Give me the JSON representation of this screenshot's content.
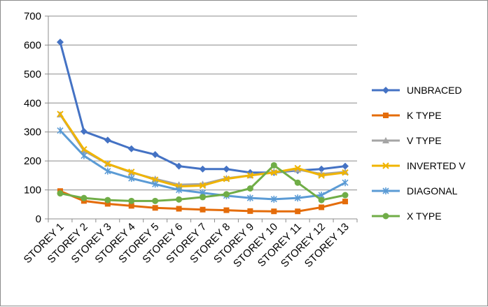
{
  "chart_data": {
    "type": "line",
    "title": "",
    "xlabel": "",
    "ylabel": "",
    "categories": [
      "STOREY 1",
      "STOREY 2",
      "STOREY 3",
      "STOREY 4",
      "STOREY 5",
      "STOREY 6",
      "STOREY 7",
      "STOREY 8",
      "STOREY 9",
      "STOREY 10",
      "STOREY 11",
      "STOREY 12",
      "STOREY 13"
    ],
    "ylim": [
      0,
      700
    ],
    "yticks": [
      0,
      100,
      200,
      300,
      400,
      500,
      600,
      700
    ],
    "grid": "horizontal",
    "legend_position": "right",
    "series": [
      {
        "name": "UNBRACED",
        "color": "#4472C4",
        "marker": "diamond",
        "values": [
          610,
          302,
          272,
          242,
          222,
          182,
          172,
          172,
          160,
          160,
          167,
          172,
          182
        ]
      },
      {
        "name": "K TYPE",
        "color": "#E46C0A",
        "marker": "square",
        "values": [
          96,
          62,
          52,
          45,
          38,
          35,
          32,
          30,
          27,
          26,
          26,
          40,
          60
        ]
      },
      {
        "name": "V TYPE",
        "color": "#A5A5A5",
        "marker": "triangle",
        "values": [
          360,
          235,
          190,
          160,
          138,
          118,
          120,
          140,
          150,
          162,
          170,
          155,
          162
        ]
      },
      {
        "name": "INVERTED V",
        "color": "#F0B400",
        "marker": "x",
        "values": [
          362,
          240,
          190,
          162,
          135,
          112,
          115,
          138,
          150,
          160,
          175,
          150,
          160
        ]
      },
      {
        "name": "DIAGONAL",
        "color": "#5B9BD5",
        "marker": "star",
        "values": [
          305,
          218,
          165,
          140,
          120,
          100,
          90,
          80,
          72,
          68,
          72,
          82,
          125
        ]
      },
      {
        "name": "X TYPE",
        "color": "#70AD47",
        "marker": "circle",
        "values": [
          88,
          72,
          65,
          62,
          62,
          67,
          75,
          85,
          105,
          185,
          125,
          65,
          82
        ]
      }
    ]
  }
}
